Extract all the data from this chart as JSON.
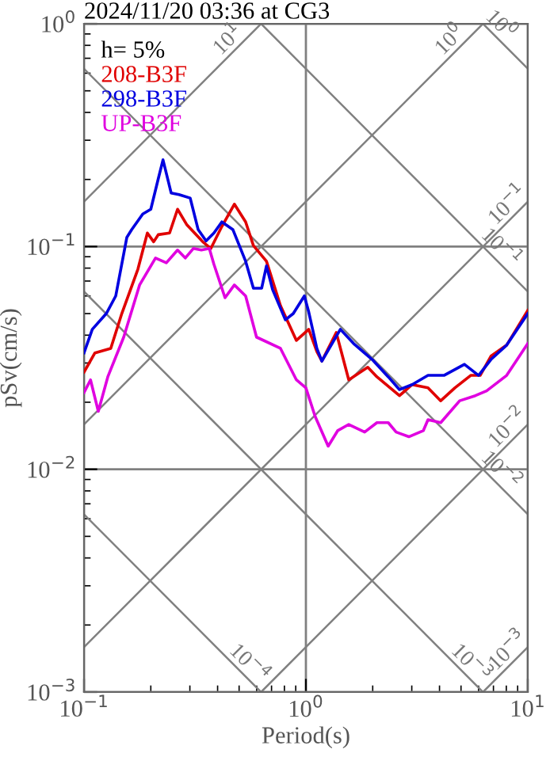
{
  "chart_data": {
    "type": "line",
    "title": "2024/11/20 03:36 at CG3",
    "xlabel": "Period(s)",
    "ylabel": "pSv(cm/s)",
    "legend_title": "h= 5%",
    "log": "xy",
    "grid": true,
    "legend": "top left",
    "xlim": [
      0.1,
      10
    ],
    "ylim": [
      0.001,
      1
    ],
    "xticks": [
      {
        "value": 0.1,
        "label": "10$^{−1}$"
      },
      {
        "value": 1,
        "label": "10$^{0}$"
      },
      {
        "value": 10,
        "label": "10$^{1}$"
      }
    ],
    "yticks": [
      {
        "value": 0.001,
        "label": "10$^{−3}$"
      },
      {
        "value": 0.01,
        "label": "10$^{−2}$"
      },
      {
        "value": 0.1,
        "label": "10$^{−1}$"
      },
      {
        "value": 1,
        "label": "10$^{0}$"
      }
    ],
    "series": [
      {
        "color": "#808080",
        "x": [
          0.1,
          0.628
        ],
        "values": [
          0.159,
          1
        ]
      },
      {
        "color": "#808080",
        "x": [
          0.1,
          6.28
        ],
        "values": [
          0.0159,
          1
        ]
      },
      {
        "color": "#808080",
        "x": [
          0.1,
          10
        ],
        "values": [
          0.00159,
          0.159
        ]
      },
      {
        "color": "#808080",
        "x": [
          0.628,
          10
        ],
        "values": [
          0.001,
          0.0159
        ]
      },
      {
        "color": "#808080",
        "x": [
          6.28,
          10
        ],
        "values": [
          0.001,
          0.00159
        ]
      },
      {
        "color": "#808080",
        "x": [
          6.28,
          10
        ],
        "values": [
          1,
          0.628
        ]
      },
      {
        "color": "#808080",
        "x": [
          0.628,
          10
        ],
        "values": [
          1,
          0.0628
        ]
      },
      {
        "color": "#808080",
        "x": [
          0.1,
          10
        ],
        "values": [
          0.628,
          0.00628
        ]
      },
      {
        "color": "#808080",
        "x": [
          0.1,
          6.28
        ],
        "values": [
          0.0628,
          0.001
        ]
      },
      {
        "color": "#808080",
        "x": [
          0.1,
          0.628
        ],
        "values": [
          0.00628,
          0.001
        ]
      },
      {
        "name": "208-B3F",
        "color": "#e00000",
        "x": [
          0.1,
          0.112,
          0.132,
          0.148,
          0.175,
          0.193,
          0.206,
          0.216,
          0.243,
          0.264,
          0.291,
          0.343,
          0.373,
          0.418,
          0.476,
          0.535,
          0.58,
          0.664,
          0.768,
          0.906,
          1.03,
          1.12,
          1.18,
          1.37,
          1.56,
          1.9,
          2.09,
          2.64,
          3.01,
          3.55,
          4.05,
          4.69,
          5.53,
          6.1,
          6.82,
          8.03,
          10
        ],
        "values": [
          0.0273,
          0.0333,
          0.0349,
          0.05,
          0.0792,
          0.115,
          0.105,
          0.113,
          0.115,
          0.147,
          0.125,
          0.105,
          0.098,
          0.123,
          0.155,
          0.129,
          0.101,
          0.0859,
          0.0543,
          0.0379,
          0.0425,
          0.0338,
          0.0306,
          0.0411,
          0.0252,
          0.0287,
          0.026,
          0.0214,
          0.024,
          0.0232,
          0.0203,
          0.0232,
          0.0264,
          0.0264,
          0.0322,
          0.0361,
          0.0517
        ]
      },
      {
        "name": "298-B3F",
        "color": "#0000e0",
        "x": [
          0.1,
          0.109,
          0.126,
          0.139,
          0.156,
          0.164,
          0.184,
          0.2,
          0.216,
          0.227,
          0.247,
          0.268,
          0.301,
          0.327,
          0.355,
          0.385,
          0.418,
          0.469,
          0.535,
          0.58,
          0.632,
          0.664,
          0.708,
          0.808,
          0.877,
          0.984,
          1.03,
          1.12,
          1.18,
          1.43,
          1.64,
          1.99,
          2.35,
          2.64,
          3.01,
          3.55,
          4.19,
          5.18,
          6.0,
          6.82,
          8.03,
          10
        ],
        "values": [
          0.0333,
          0.0425,
          0.05,
          0.06,
          0.11,
          0.119,
          0.14,
          0.147,
          0.201,
          0.245,
          0.174,
          0.171,
          0.165,
          0.119,
          0.106,
          0.115,
          0.129,
          0.119,
          0.0859,
          0.065,
          0.065,
          0.0818,
          0.064,
          0.0469,
          0.05,
          0.06,
          0.0508,
          0.0349,
          0.0306,
          0.0425,
          0.0367,
          0.0311,
          0.026,
          0.0228,
          0.024,
          0.0264,
          0.0264,
          0.0296,
          0.0264,
          0.0311,
          0.0361,
          0.05
        ]
      },
      {
        "name": "UP-B3F",
        "color": "#e000e0",
        "x": [
          0.1,
          0.107,
          0.116,
          0.128,
          0.151,
          0.178,
          0.21,
          0.235,
          0.264,
          0.286,
          0.311,
          0.338,
          0.367,
          0.385,
          0.432,
          0.476,
          0.535,
          0.599,
          0.768,
          0.906,
          1.0,
          1.1,
          1.26,
          1.39,
          1.56,
          1.84,
          2.09,
          2.35,
          2.55,
          2.91,
          3.38,
          3.55,
          4.05,
          4.93,
          5.8,
          6.52,
          8.03,
          10
        ],
        "values": [
          0.0221,
          0.0252,
          0.0182,
          0.026,
          0.0392,
          0.0672,
          0.0888,
          0.0845,
          0.0964,
          0.0888,
          0.098,
          0.0964,
          0.098,
          0.0832,
          0.0589,
          0.0672,
          0.06,
          0.0392,
          0.0349,
          0.0252,
          0.0232,
          0.0173,
          0.0127,
          0.0149,
          0.0159,
          0.0147,
          0.0162,
          0.0162,
          0.0147,
          0.014,
          0.0149,
          0.0167,
          0.0162,
          0.0203,
          0.0214,
          0.0225,
          0.0264,
          0.0367
        ]
      }
    ],
    "annotations": [
      {
        "text": "10$^{1}$",
        "x": 0.45,
        "y": 0.717
      },
      {
        "text": "10$^{0}$",
        "x": 4.5,
        "y": 0.717
      },
      {
        "text": "10$^{0}$",
        "x": 7.5,
        "y": 0.837
      },
      {
        "text": "10$^{−1}$",
        "x": 8.2,
        "y": 0.13
      },
      {
        "text": "10$^{−1}$",
        "x": 7.5,
        "y": 0.0837
      },
      {
        "text": "10$^{−2}$",
        "x": 8.2,
        "y": 0.013
      },
      {
        "text": "10$^{−2}$",
        "x": 7.5,
        "y": 0.00837
      },
      {
        "text": "10$^{−3}$",
        "x": 8.2,
        "y": 0.0013
      },
      {
        "text": "10$^{−3}$",
        "x": 5.5,
        "y": 0.00114
      },
      {
        "text": "10$^{−4}$",
        "x": 0.55,
        "y": 0.00114
      }
    ]
  }
}
